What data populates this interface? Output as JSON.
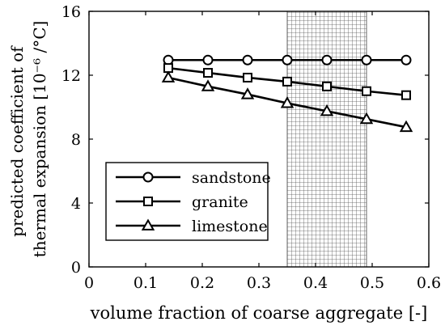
{
  "chart_data": {
    "type": "line",
    "title": "",
    "xlabel": "volume fraction of coarse aggregate [-]",
    "ylabel_lines": [
      "predicted coefficient of",
      "thermal expansion [10⁻⁶ /°C]"
    ],
    "xlim": [
      0,
      0.6
    ],
    "ylim": [
      0,
      16
    ],
    "xticks": [
      0,
      0.1,
      0.2,
      0.3,
      0.4,
      0.5,
      0.6
    ],
    "xtick_labels": [
      "0",
      "0.1",
      "0.2",
      "0.3",
      "0.4",
      "0.5",
      "0.6"
    ],
    "yticks": [
      0,
      4,
      8,
      12,
      16
    ],
    "ytick_labels": [
      "0",
      "4",
      "8",
      "12",
      "16"
    ],
    "grid": false,
    "legend_position": "lower-left",
    "shaded_region": {
      "x_from": 0.35,
      "x_to": 0.49,
      "pattern": "crosshatch"
    },
    "x": [
      0.14,
      0.21,
      0.28,
      0.35,
      0.42,
      0.49,
      0.56
    ],
    "series": [
      {
        "name": "sandstone",
        "marker": "circle",
        "values": [
          12.95,
          12.95,
          12.95,
          12.95,
          12.95,
          12.95,
          12.95
        ]
      },
      {
        "name": "granite",
        "marker": "square",
        "values": [
          12.45,
          12.15,
          11.85,
          11.6,
          11.3,
          11.0,
          10.75
        ]
      },
      {
        "name": "limestone",
        "marker": "triangle",
        "values": [
          11.85,
          11.3,
          10.8,
          10.25,
          9.75,
          9.25,
          8.75
        ]
      }
    ]
  }
}
